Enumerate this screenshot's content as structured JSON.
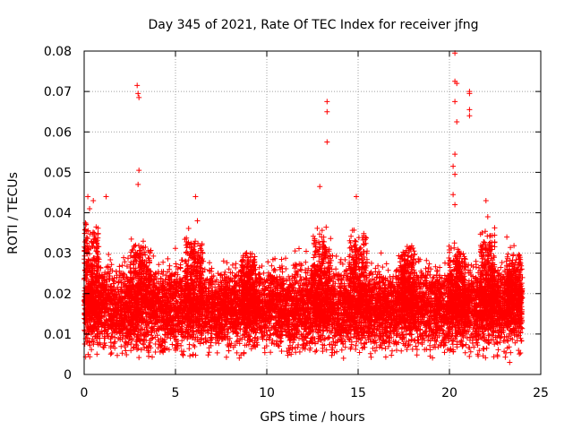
{
  "chart_data": {
    "type": "scatter",
    "title": "Day 345 of 2021, Rate Of TEC Index for receiver jfng",
    "xlabel": "GPS time / hours",
    "ylabel": "ROTI / TECUs",
    "xlim": [
      0,
      25
    ],
    "ylim": [
      0,
      0.08
    ],
    "xticks": [
      0,
      5,
      10,
      15,
      20,
      25
    ],
    "xtick_labels": [
      "0",
      "5",
      "10",
      "15",
      "20",
      "25"
    ],
    "yticks": [
      0,
      0.01,
      0.02,
      0.03,
      0.04,
      0.05,
      0.06,
      0.07,
      0.08
    ],
    "ytick_labels": [
      "0",
      "0.01",
      "0.02",
      "0.03",
      "0.04",
      "0.05",
      "0.06",
      "0.07",
      "0.08"
    ],
    "grid": true,
    "marker": "+",
    "color": "#ff0000",
    "x_range_of_data": [
      0,
      24
    ],
    "typical_band": [
      0.008,
      0.025
    ],
    "outliers": [
      {
        "x": 0.2,
        "y": 0.044
      },
      {
        "x": 0.3,
        "y": 0.041
      },
      {
        "x": 0.5,
        "y": 0.043
      },
      {
        "x": 1.2,
        "y": 0.044
      },
      {
        "x": 2.9,
        "y": 0.0715
      },
      {
        "x": 2.95,
        "y": 0.0695
      },
      {
        "x": 3.0,
        "y": 0.0685
      },
      {
        "x": 3.0,
        "y": 0.0505
      },
      {
        "x": 2.95,
        "y": 0.047
      },
      {
        "x": 6.1,
        "y": 0.044
      },
      {
        "x": 6.2,
        "y": 0.038
      },
      {
        "x": 12.9,
        "y": 0.0465
      },
      {
        "x": 13.3,
        "y": 0.0675
      },
      {
        "x": 13.3,
        "y": 0.065
      },
      {
        "x": 13.3,
        "y": 0.0575
      },
      {
        "x": 14.9,
        "y": 0.044
      },
      {
        "x": 20.3,
        "y": 0.0795
      },
      {
        "x": 20.3,
        "y": 0.0725
      },
      {
        "x": 20.4,
        "y": 0.072
      },
      {
        "x": 20.3,
        "y": 0.0675
      },
      {
        "x": 20.4,
        "y": 0.0625
      },
      {
        "x": 20.3,
        "y": 0.0545
      },
      {
        "x": 20.2,
        "y": 0.0515
      },
      {
        "x": 20.3,
        "y": 0.0495
      },
      {
        "x": 20.2,
        "y": 0.0445
      },
      {
        "x": 20.3,
        "y": 0.042
      },
      {
        "x": 21.1,
        "y": 0.07
      },
      {
        "x": 21.1,
        "y": 0.0695
      },
      {
        "x": 21.1,
        "y": 0.0655
      },
      {
        "x": 21.1,
        "y": 0.064
      },
      {
        "x": 22.0,
        "y": 0.043
      },
      {
        "x": 22.1,
        "y": 0.039
      },
      {
        "x": 0.7,
        "y": 0.005
      },
      {
        "x": 5.0,
        "y": 0.006
      },
      {
        "x": 10.2,
        "y": 0.0055
      },
      {
        "x": 14.2,
        "y": 0.004
      },
      {
        "x": 23.3,
        "y": 0.003
      }
    ]
  }
}
